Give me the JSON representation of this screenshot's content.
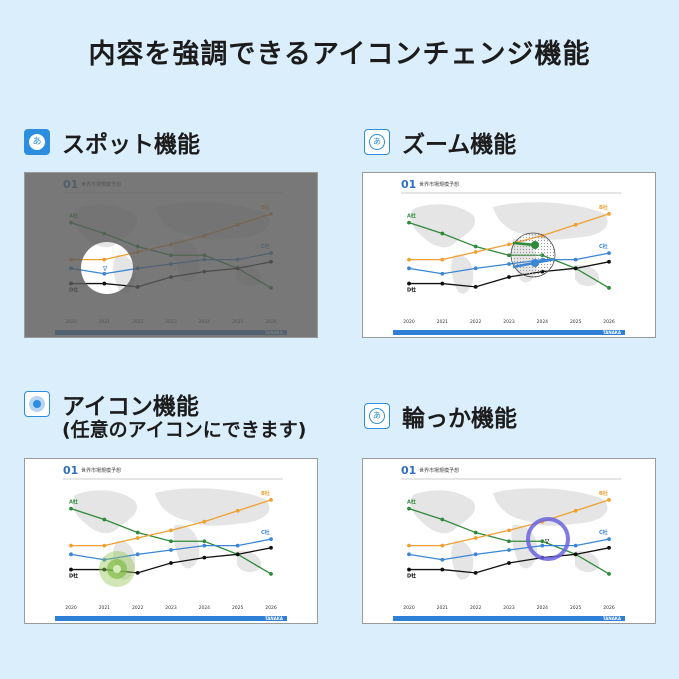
{
  "title": "内容を強調できるアイコンチェンジ機能",
  "sections": [
    {
      "label": "スポット機能",
      "icon": "a-circle-icon",
      "icon_char": "あ"
    },
    {
      "label": "ズーム機能",
      "icon": "a-circle-outline-icon",
      "icon_char": "あ"
    },
    {
      "label": "アイコン機能",
      "sub": "(任意のアイコンにできます)",
      "icon": "dot-circle-icon"
    },
    {
      "label": "輪っか機能",
      "icon": "a-circle-outline-icon",
      "icon_char": "あ"
    }
  ],
  "slide": {
    "number": "01",
    "title": "世界市場規模予想",
    "brand": "TANAKA"
  },
  "colors": {
    "accent": "#2d8ee0",
    "a_series": "#2e8b3a",
    "b_series": "#f0a030",
    "c_series": "#3a86d4",
    "d_series": "#111111"
  },
  "chart_data": {
    "type": "line",
    "x": [
      "2020",
      "2021",
      "2022",
      "2023",
      "2024",
      "2025",
      "2026"
    ],
    "series": [
      {
        "name": "A社",
        "values": [
          72,
          62,
          50,
          42,
          42,
          30,
          12
        ]
      },
      {
        "name": "B社",
        "values": [
          38,
          38,
          45,
          52,
          60,
          70,
          80
        ]
      },
      {
        "name": "C社",
        "values": [
          30,
          25,
          30,
          34,
          38,
          38,
          44
        ]
      },
      {
        "name": "D社",
        "values": [
          16,
          16,
          13,
          22,
          27,
          30,
          36
        ]
      }
    ],
    "ylim": [
      0,
      90
    ]
  }
}
